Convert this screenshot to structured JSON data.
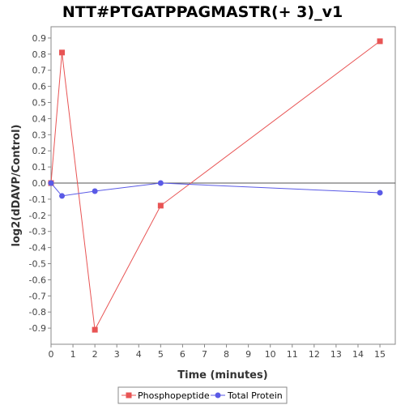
{
  "chart_data": {
    "type": "line",
    "title": "NTT#PTGATPPAGMASTR(+ 3)_v1",
    "xlabel": "Time (minutes)",
    "ylabel": "log2(dDAVP/Control)",
    "xlim": [
      0,
      15.7
    ],
    "ylim": [
      -1.0,
      0.97
    ],
    "x_ticks": [
      0,
      1,
      2,
      3,
      4,
      5,
      6,
      7,
      8,
      9,
      10,
      11,
      12,
      13,
      14,
      15
    ],
    "y_ticks": [
      0.9,
      0.8,
      0.7,
      0.6,
      0.5,
      0.4,
      0.3,
      0.2,
      0.1,
      0.0,
      -0.1,
      -0.2,
      -0.3,
      -0.4,
      -0.5,
      -0.6,
      -0.7,
      -0.8,
      -0.9
    ],
    "y_tick_labels": [
      "0.9",
      "0.8",
      "0.7",
      "0.6",
      "0.5",
      "0.4",
      "0.3",
      "0.2",
      "0.1",
      "0.0",
      "-0.1",
      "-0.2",
      "-0.3",
      "-0.4",
      "-0.5",
      "-0.6",
      "-0.7",
      "-0.8",
      "-0.9"
    ],
    "grid": false,
    "legend_position": "bottom-center",
    "series": [
      {
        "name": "Phosphopeptide",
        "color": "#e85454",
        "marker": "square",
        "x": [
          0,
          0.5,
          2,
          5,
          15
        ],
        "y": [
          0.0,
          0.81,
          -0.91,
          -0.14,
          0.88
        ]
      },
      {
        "name": "Total Protein",
        "color": "#5a5ae6",
        "marker": "circle",
        "x": [
          0,
          0.5,
          2,
          5,
          15
        ],
        "y": [
          0.0,
          -0.08,
          -0.05,
          0.0,
          -0.06
        ]
      }
    ]
  }
}
